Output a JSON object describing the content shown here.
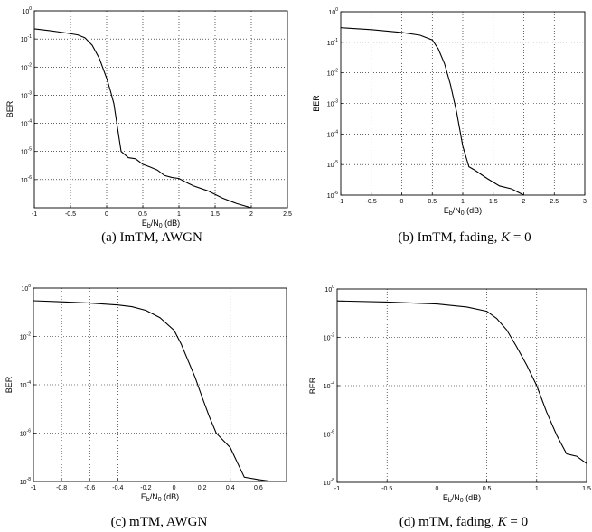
{
  "chart_data": [
    {
      "type": "line",
      "caption": "(a) ImTM, AWGN",
      "xlabel": "E_b/N_0 (dB)",
      "ylabel": "BER",
      "xlim": [
        -1,
        2.5
      ],
      "ylim_exp": [
        -7,
        0
      ],
      "yscale": "log",
      "grid": true,
      "xticks": [
        "-1",
        "-0.5",
        "0",
        "0.5",
        "1",
        "1.5",
        "2",
        "2.5"
      ],
      "xtick_values": [
        -1,
        -0.5,
        0,
        0.5,
        1,
        1.5,
        2,
        2.5
      ],
      "yticks_exp": [
        -6,
        -5,
        -4,
        -3,
        -2,
        -1,
        0
      ],
      "series": [
        {
          "x": [
            -1,
            -0.8,
            -0.6,
            -0.4,
            -0.3,
            -0.2,
            -0.1,
            0,
            0.05,
            0.1,
            0.15,
            0.2,
            0.3,
            0.4,
            0.5,
            0.6,
            0.7,
            0.8,
            0.9,
            1.0,
            1.1,
            1.2,
            1.4,
            1.6,
            1.8,
            2.0,
            2.2,
            2.3
          ],
          "y": [
            0.23,
            0.2,
            0.17,
            0.14,
            0.11,
            0.06,
            0.02,
            0.004,
            0.0015,
            0.0005,
            7e-05,
            1e-05,
            6e-06,
            5.5e-06,
            3.5e-06,
            2.8e-06,
            2.2e-06,
            1.4e-06,
            1.2e-06,
            1.1e-06,
            8e-07,
            6e-07,
            4e-07,
            2.2e-07,
            1.4e-07,
            1e-07,
            7e-08,
            6e-08
          ]
        }
      ]
    },
    {
      "type": "line",
      "caption": "(b) ImTM, fading, K = 0",
      "caption_parts": [
        "(b) ImTM, fading, ",
        "K",
        " = 0"
      ],
      "xlabel": "E_b/N_0 (dB)",
      "ylabel": "BER",
      "xlim": [
        -1,
        3
      ],
      "ylim_exp": [
        -6,
        0
      ],
      "yscale": "log",
      "grid": true,
      "xticks": [
        "-1",
        "-0.5",
        "0",
        "0.5",
        "1",
        "1.5",
        "2",
        "2.5",
        "3"
      ],
      "xtick_values": [
        -1,
        -0.5,
        0,
        0.5,
        1,
        1.5,
        2,
        2.5,
        3
      ],
      "yticks_exp": [
        -6,
        -5,
        -4,
        -3,
        -2,
        -1,
        0
      ],
      "series": [
        {
          "x": [
            -1,
            -0.5,
            0,
            0.3,
            0.5,
            0.6,
            0.7,
            0.8,
            0.9,
            1.0,
            1.1,
            1.2,
            1.4,
            1.6,
            1.8,
            2.0,
            2.1,
            2.2,
            2.3,
            2.4,
            2.5,
            2.6,
            2.7,
            2.8,
            2.9
          ],
          "y": [
            0.3,
            0.26,
            0.21,
            0.17,
            0.12,
            0.06,
            0.02,
            0.004,
            0.0005,
            4e-05,
            8.5e-06,
            6.5e-06,
            3.5e-06,
            2e-06,
            1.6e-06,
            1e-06,
            7.5e-07,
            7e-07,
            6e-07,
            4.5e-07,
            3.5e-07,
            2.5e-07,
            1.9e-07,
            2e-07,
            1.7e-07
          ]
        }
      ]
    },
    {
      "type": "line",
      "caption": "(c) mTM, AWGN",
      "xlabel": "E_b/N_0 (dB)",
      "ylabel": "BER",
      "xlim": [
        -1,
        0.8
      ],
      "ylim_exp": [
        -8,
        0
      ],
      "yscale": "log",
      "grid": true,
      "xticks": [
        "-1",
        "-0.8",
        "-0.6",
        "-0.4",
        "-0.2",
        "0",
        "0.2",
        "0.4",
        "0.6"
      ],
      "xtick_values": [
        -1,
        -0.8,
        -0.6,
        -0.4,
        -0.2,
        0,
        0.2,
        0.4,
        0.6
      ],
      "yticks_exp": [
        -8,
        -6,
        -4,
        -2,
        0
      ],
      "series": [
        {
          "x": [
            -1,
            -0.8,
            -0.6,
            -0.4,
            -0.3,
            -0.2,
            -0.1,
            0,
            0.05,
            0.1,
            0.15,
            0.2,
            0.25,
            0.3,
            0.35,
            0.4,
            0.45,
            0.5,
            0.6,
            0.7
          ],
          "y": [
            0.3,
            0.27,
            0.24,
            0.2,
            0.17,
            0.12,
            0.06,
            0.018,
            0.005,
            0.001,
            0.0002,
            3e-05,
            5e-06,
            1e-06,
            5e-07,
            2.5e-07,
            6e-08,
            1.5e-08,
            1.2e-08,
            1e-08
          ]
        }
      ]
    },
    {
      "type": "line",
      "caption": "(d) mTM, fading, K = 0",
      "caption_parts": [
        "(d) mTM, fading, ",
        "K",
        " = 0"
      ],
      "xlabel": "E_b/N_0 (dB)",
      "ylabel": "BER",
      "xlim": [
        -1,
        1.5
      ],
      "ylim_exp": [
        -8,
        0
      ],
      "yscale": "log",
      "grid": true,
      "xticks": [
        "-1",
        "-0.5",
        "0",
        "0.5",
        "1",
        "1.5"
      ],
      "xtick_values": [
        -1,
        -0.5,
        0,
        0.5,
        1,
        1.5
      ],
      "yticks_exp": [
        -8,
        -6,
        -4,
        -2,
        0
      ],
      "series": [
        {
          "x": [
            -1,
            -0.5,
            0,
            0.3,
            0.5,
            0.6,
            0.7,
            0.8,
            0.9,
            1.0,
            1.1,
            1.2,
            1.3,
            1.4,
            1.5
          ],
          "y": [
            0.32,
            0.29,
            0.24,
            0.18,
            0.12,
            0.06,
            0.02,
            0.004,
            0.0007,
            0.0001,
            8e-06,
            9e-07,
            1.5e-07,
            1.2e-07,
            6e-08
          ]
        }
      ]
    }
  ]
}
